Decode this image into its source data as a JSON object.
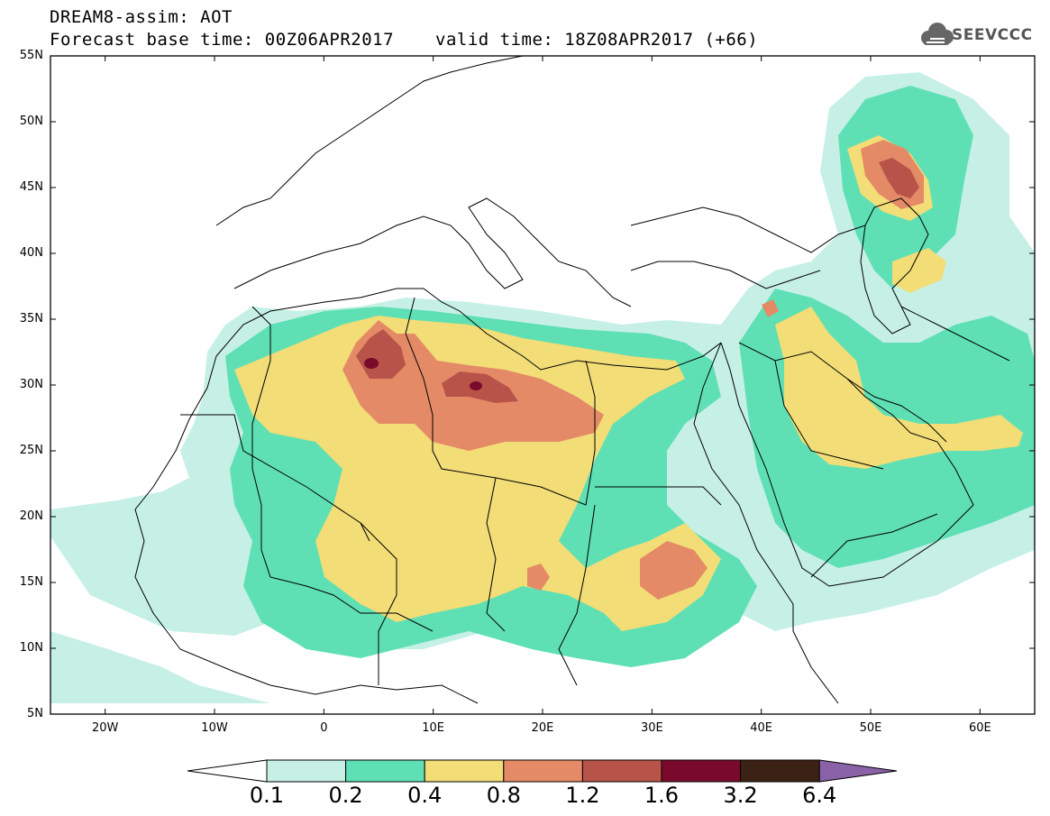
{
  "title": {
    "line1": "DREAM8-assim: AOT",
    "line2": "Forecast base time: 00Z06APR2017",
    "valid": "valid time: 18Z08APR2017 (+66)"
  },
  "logo_text": "SEEVCCC",
  "map": {
    "lat_labels": [
      "55N",
      "50N",
      "45N",
      "40N",
      "35N",
      "30N",
      "25N",
      "20N",
      "15N",
      "10N",
      "5N"
    ],
    "lon_labels": [
      "20W",
      "10W",
      "0",
      "10E",
      "20E",
      "30E",
      "40E",
      "50E",
      "60E"
    ],
    "colors": {
      "c01": "#c6f0e6",
      "c02": "#5fe0b4",
      "c04": "#f2dd77",
      "c08": "#e58a66",
      "c12": "#b8534a",
      "c16": "#7a0a2c",
      "c32": "#3b2214",
      "c64": "#8a62a8"
    }
  },
  "colorbar": {
    "labels": [
      "0.1",
      "0.2",
      "0.4",
      "0.8",
      "1.2",
      "1.6",
      "3.2",
      "6.4"
    ],
    "colors": [
      "#ffffff",
      "#c6f0e6",
      "#5fe0b4",
      "#f2dd77",
      "#e58a66",
      "#b8534a",
      "#7a0a2c",
      "#3b2214",
      "#8a62a8"
    ]
  }
}
